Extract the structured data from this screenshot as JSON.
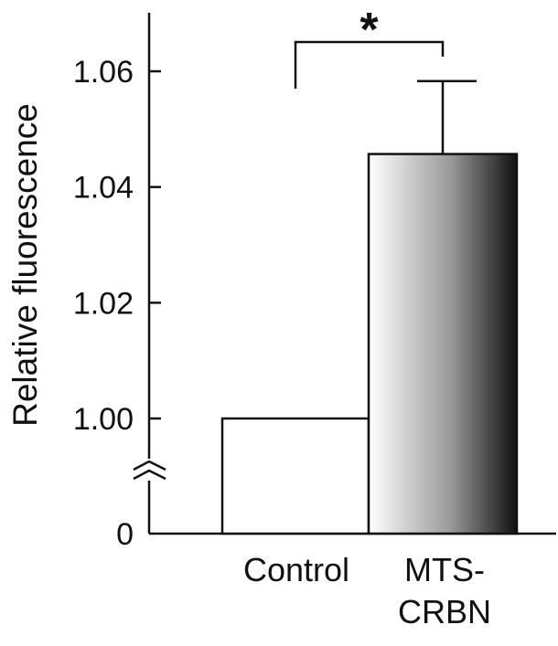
{
  "chart_data": {
    "type": "bar",
    "title": "",
    "xlabel": "",
    "ylabel": "Relative fluorescence",
    "ylim": [
      0.98,
      1.07
    ],
    "axis_break": true,
    "zero_label": "0",
    "yticks": [
      1.0,
      1.02,
      1.04,
      1.06
    ],
    "ytick_labels": [
      "1.00",
      "1.02",
      "1.04",
      "1.06"
    ],
    "categories": [
      {
        "label_lines": [
          "Control"
        ],
        "value": 1.0,
        "error": 0,
        "fill": "#ffffff"
      },
      {
        "label_lines": [
          "MTS-",
          "CRBN"
        ],
        "value": 1.0457,
        "error": 0.0126,
        "fill": "gradient"
      }
    ],
    "significance": {
      "between": [
        0,
        1
      ],
      "symbol": "*"
    },
    "grid": false,
    "colors": {
      "axis": "#111111",
      "control_fill": "#ffffff",
      "gradient_start": "#ffffff",
      "gradient_mid": "#9a9a9a",
      "gradient_end": "#111111"
    }
  }
}
